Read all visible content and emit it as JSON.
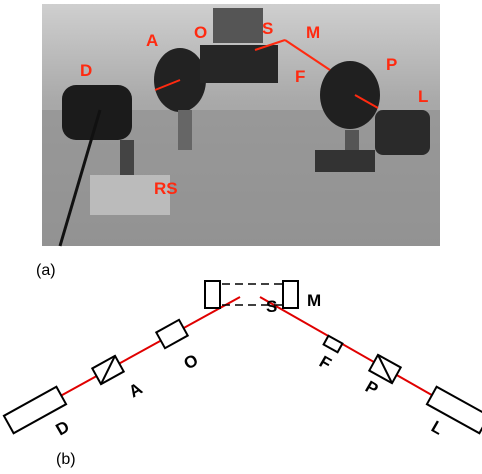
{
  "photo": {
    "labels": [
      "A",
      "O",
      "S",
      "M",
      "D",
      "F",
      "P",
      "L",
      "RS"
    ],
    "caption": "(a)"
  },
  "schematic": {
    "labels": [
      "S",
      "M",
      "O",
      "A",
      "D",
      "F",
      "P",
      "L"
    ],
    "caption": "(b)"
  }
}
